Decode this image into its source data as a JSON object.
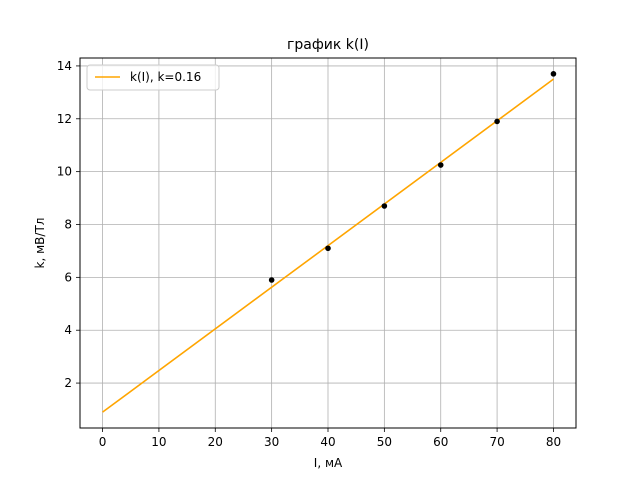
{
  "chart_data": {
    "type": "scatter",
    "title": "график k(I)",
    "xlabel": "I, мА",
    "ylabel": "k, мВ/Тл",
    "xlim": [
      -4,
      84
    ],
    "ylim": [
      0.3,
      14.3
    ],
    "xticks": [
      0,
      10,
      20,
      30,
      40,
      50,
      60,
      70,
      80
    ],
    "yticks": [
      2,
      4,
      6,
      8,
      10,
      12,
      14
    ],
    "grid": true,
    "legend_position": "top-left",
    "series": [
      {
        "type": "line",
        "name": "k(I), k=0.16",
        "color": "#FFA500",
        "x": [
          0,
          80
        ],
        "y": [
          0.9,
          13.5
        ]
      },
      {
        "type": "scatter",
        "color": "#000000",
        "x": [
          30,
          40,
          50,
          60,
          70,
          80
        ],
        "y": [
          5.9,
          7.1,
          8.7,
          10.25,
          11.9,
          13.7
        ]
      }
    ]
  }
}
